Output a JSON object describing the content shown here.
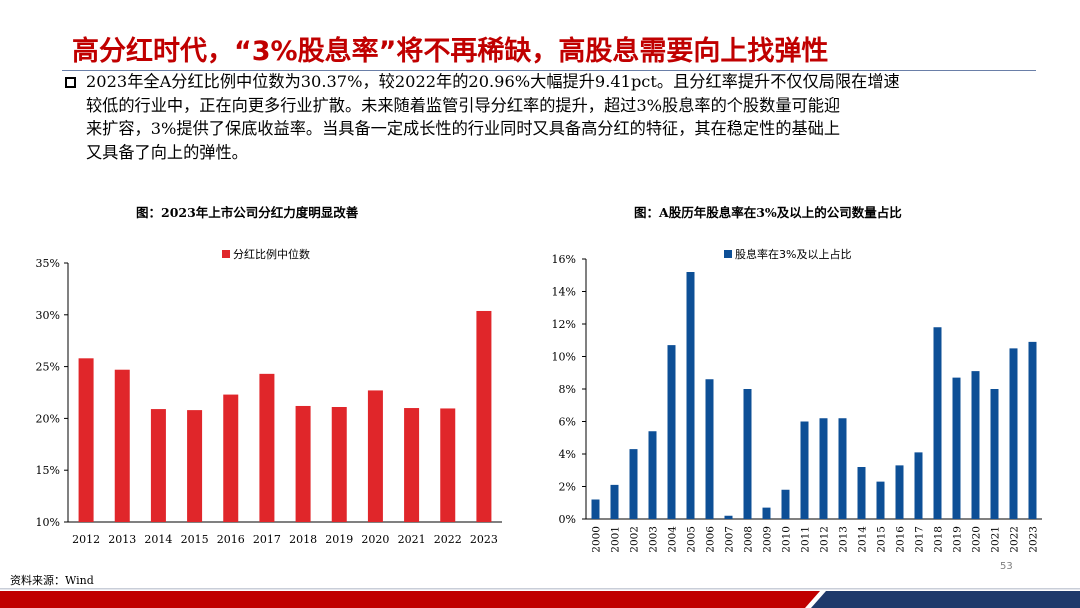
{
  "header": {
    "title": "高分红时代，“3%股息率”将不再稀缺，高股息需要向上找弹性"
  },
  "body": {
    "lines": [
      "2023年全A分红比例中位数为30.37%，较2022年的20.96%大幅提升9.41pct。且分红率提升不仅仅局限在增速",
      "较低的行业中，正在向更多行业扩散。未来随着监管引导分红率的提升，超过3%股息率的个股数量可能迎",
      "来扩容，3%提供了保底收益率。当具备一定成长性的行业同时又具备高分红的特征，其在稳定性的基础上",
      "又具备了向上的弹性。"
    ]
  },
  "footer": {
    "source": "资料来源：Wind",
    "page": "53"
  },
  "colors": {
    "title": "#c00000",
    "series_left": "#e0262a",
    "series_right": "#0d4f96",
    "band_red": "#c00000",
    "band_navy": "#1f3a6b"
  },
  "chart_data": [
    {
      "type": "bar",
      "caption": "图：2023年上市公司分红力度明显改善",
      "categories": [
        "2012",
        "2013",
        "2014",
        "2015",
        "2016",
        "2017",
        "2018",
        "2019",
        "2020",
        "2021",
        "2022",
        "2023"
      ],
      "series": [
        {
          "name": "分红比例中位数",
          "values": [
            25.8,
            24.7,
            20.9,
            20.8,
            22.3,
            24.3,
            21.2,
            21.1,
            22.7,
            21.0,
            20.96,
            30.37
          ]
        }
      ],
      "yticks": [
        "10%",
        "15%",
        "20%",
        "25%",
        "30%",
        "35%"
      ],
      "ylim": [
        10,
        35
      ]
    },
    {
      "type": "bar",
      "caption": "图：A股历年股息率在3%及以上的公司数量占比",
      "categories": [
        "2000",
        "2001",
        "2002",
        "2003",
        "2004",
        "2005",
        "2006",
        "2007",
        "2008",
        "2009",
        "2010",
        "2011",
        "2012",
        "2013",
        "2014",
        "2015",
        "2016",
        "2017",
        "2018",
        "2019",
        "2020",
        "2021",
        "2022",
        "2023"
      ],
      "series": [
        {
          "name": "股息率在3%及以上占比",
          "values": [
            1.2,
            2.1,
            4.3,
            5.4,
            10.7,
            15.2,
            8.6,
            0.2,
            8.0,
            0.7,
            1.8,
            6.0,
            6.2,
            6.2,
            3.2,
            2.3,
            3.3,
            4.1,
            11.8,
            8.7,
            9.1,
            8.0,
            10.5,
            10.9
          ]
        }
      ],
      "yticks": [
        "0%",
        "2%",
        "4%",
        "6%",
        "8%",
        "10%",
        "12%",
        "14%",
        "16%"
      ],
      "ylim": [
        0,
        16
      ]
    }
  ]
}
